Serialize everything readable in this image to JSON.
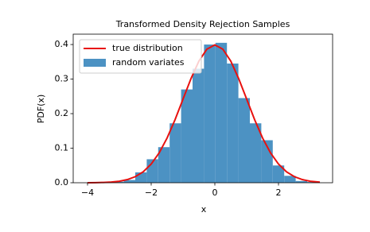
{
  "chart_data": {
    "type": "histogram",
    "title": "Transformed Density Rejection Samples",
    "xlabel": "x",
    "ylabel": "PDF(x)",
    "xlim": [
      -4.45,
      3.7
    ],
    "ylim": [
      0,
      0.43
    ],
    "xticks": [
      {
        "value": -4,
        "label": "−4"
      },
      {
        "value": -2,
        "label": "−2"
      },
      0,
      2
    ],
    "yticks": [
      {
        "value": 0,
        "label": "0.0"
      },
      {
        "value": 0.1,
        "label": "0.1"
      },
      {
        "value": 0.2,
        "label": "0.2"
      },
      {
        "value": 0.3,
        "label": "0.3"
      },
      {
        "value": 0.4,
        "label": "0.4"
      }
    ],
    "legend": "upper left",
    "series": [
      {
        "name": "true distribution",
        "type": "line",
        "color": "#e8110f",
        "x": [
          -4,
          -3.75,
          -3.5,
          -3.25,
          -3,
          -2.75,
          -2.5,
          -2.25,
          -2,
          -1.75,
          -1.5,
          -1.25,
          -1,
          -0.75,
          -0.5,
          -0.25,
          0,
          0.25,
          0.5,
          0.75,
          1,
          1.25,
          1.5,
          1.75,
          2,
          2.25,
          2.5,
          2.75,
          3,
          3.3
        ],
        "values": [
          0.0001,
          0.0004,
          0.0009,
          0.002,
          0.0044,
          0.0091,
          0.0175,
          0.0317,
          0.054,
          0.0863,
          0.1295,
          0.1826,
          0.242,
          0.3011,
          0.3521,
          0.3867,
          0.3989,
          0.3867,
          0.3521,
          0.3011,
          0.242,
          0.1826,
          0.1295,
          0.0863,
          0.054,
          0.0317,
          0.0175,
          0.0091,
          0.0044,
          0.0017
        ]
      },
      {
        "name": "random variates",
        "type": "histogram",
        "color": "#4c92c3",
        "bins": [
          -3.22,
          -2.86,
          -2.5,
          -2.14,
          -1.78,
          -1.42,
          -1.06,
          -0.7,
          -0.34,
          0.02,
          0.38,
          0.74,
          1.1,
          1.46,
          1.82,
          2.18,
          2.54,
          2.9,
          3.26
        ],
        "values": [
          0.003,
          0.008,
          0.03,
          0.068,
          0.103,
          0.172,
          0.27,
          0.33,
          0.4,
          0.405,
          0.345,
          0.245,
          0.172,
          0.123,
          0.05,
          0.02,
          0.005,
          0.002
        ]
      }
    ]
  }
}
